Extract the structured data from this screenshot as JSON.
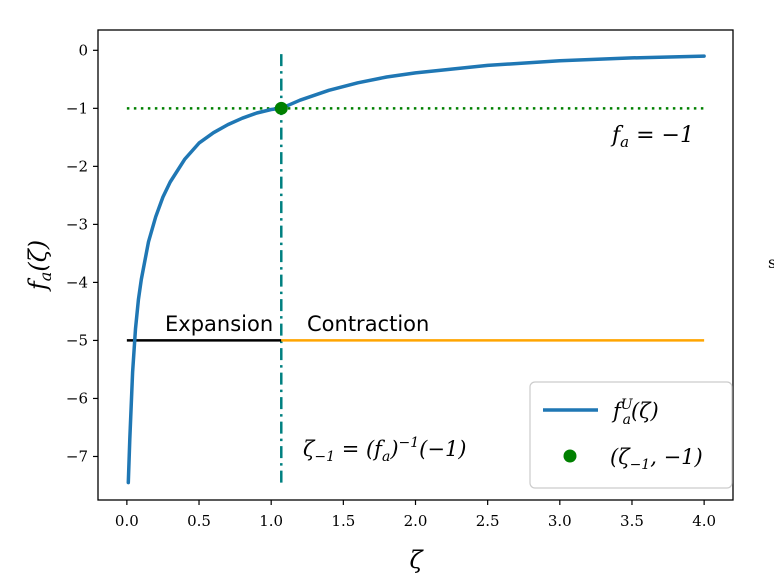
{
  "chart_data": {
    "type": "line",
    "xlabel": "ζ",
    "ylabel": "f_a(ζ)",
    "xlim": [
      -0.2,
      4.2
    ],
    "ylim": [
      -7.75,
      0.35
    ],
    "xticks": [
      0.0,
      0.5,
      1.0,
      1.5,
      2.0,
      2.5,
      3.0,
      3.5,
      4.0
    ],
    "xtick_labels": [
      "0.0",
      "0.5",
      "1.0",
      "1.5",
      "2.0",
      "2.5",
      "3.0",
      "3.5",
      "4.0"
    ],
    "yticks": [
      0,
      -1,
      -2,
      -3,
      -4,
      -5,
      -6,
      -7
    ],
    "ytick_labels": [
      "0",
      "−1",
      "−2",
      "−3",
      "−4",
      "−5",
      "−6",
      "−7"
    ],
    "grid": false,
    "legend_position": "lower-right",
    "series": [
      {
        "name": "f_a^U(ζ)",
        "color": "#1f77b4",
        "x": [
          0.01,
          0.02,
          0.04,
          0.06,
          0.08,
          0.1,
          0.15,
          0.2,
          0.25,
          0.3,
          0.4,
          0.5,
          0.6,
          0.7,
          0.8,
          0.9,
          1.0,
          1.07,
          1.2,
          1.4,
          1.6,
          1.8,
          2.0,
          2.5,
          3.0,
          3.5,
          4.0
        ],
        "y": [
          -7.45,
          -6.7,
          -5.55,
          -4.8,
          -4.3,
          -3.95,
          -3.3,
          -2.87,
          -2.53,
          -2.27,
          -1.88,
          -1.6,
          -1.42,
          -1.28,
          -1.17,
          -1.08,
          -1.02,
          -1.0,
          -0.86,
          -0.69,
          -0.56,
          -0.46,
          -0.39,
          -0.26,
          -0.18,
          -0.13,
          -0.1
        ]
      }
    ],
    "hline": {
      "y": -1,
      "xmin": 0.0,
      "xmax": 4.0,
      "color": "#008000",
      "style": "dotted",
      "label": "f_a = −1"
    },
    "vline": {
      "x": 1.07,
      "ymin": -7.45,
      "ymax": 0.0,
      "color": "#008080",
      "style": "dashdot",
      "label": "ζ₋₁ = (f_a)⁻¹(−1)"
    },
    "point": {
      "x": 1.07,
      "y": -1,
      "color": "#008000",
      "name": "(ζ₋₁, −1)"
    },
    "segments": [
      {
        "label": "Expansion",
        "x0": 0.0,
        "x1": 1.07,
        "y": -5,
        "color": "#000000"
      },
      {
        "label": "Contraction",
        "x0": 1.07,
        "x1": 4.0,
        "y": -5,
        "color": "#ffa500"
      }
    ],
    "legend": [
      {
        "label": "f_a^U(ζ)",
        "kind": "line",
        "color": "#1f77b4"
      },
      {
        "label": "(ζ₋₁, −1)",
        "kind": "point",
        "color": "#008000"
      }
    ]
  }
}
